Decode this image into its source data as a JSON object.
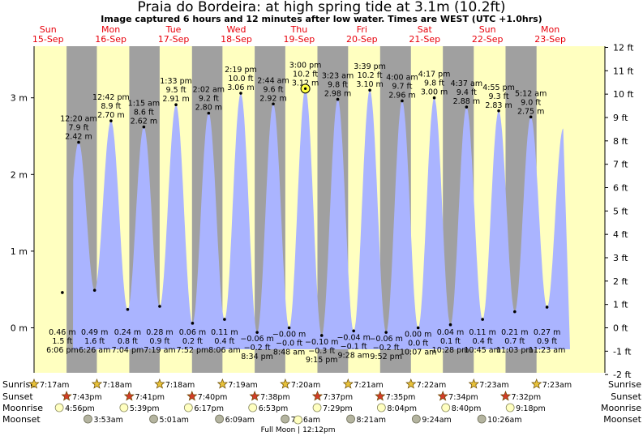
{
  "title": "Praia do Bordeira: at high  spring tide at 3.1m (10.2ft)",
  "subtitle": "Image captured 6 hours and 12 minutes after low water. Times are WEST (UTC +1.0hrs)",
  "colors": {
    "water": "#aab4ff",
    "day": "#ffffc0",
    "night": "#a0a0a0",
    "day_header": "#e8000b",
    "sun_star": "#e8c23a",
    "sunset_star": "#d23c28",
    "moon": "#ffffc0",
    "moonset": "#b4b4a0"
  },
  "days": [
    {
      "name": "Sun",
      "date": "15-Sep"
    },
    {
      "name": "Mon",
      "date": "16-Sep"
    },
    {
      "name": "Tue",
      "date": "17-Sep"
    },
    {
      "name": "Wed",
      "date": "18-Sep"
    },
    {
      "name": "Thu",
      "date": "19-Sep"
    },
    {
      "name": "Fri",
      "date": "20-Sep"
    },
    {
      "name": "Sat",
      "date": "21-Sep"
    },
    {
      "name": "Sun",
      "date": "22-Sep"
    },
    {
      "name": "Mon",
      "date": "23-Sep"
    }
  ],
  "chart_data": {
    "type": "area",
    "title": "Praia do Bordeira: at high  spring tide at 3.1m (10.2ft)",
    "left_axis": {
      "unit": "m",
      "ticks": [
        0,
        1,
        2,
        3
      ],
      "labels": [
        "0 m",
        "1 m",
        "2 m",
        "3 m"
      ],
      "range": [
        -0.58,
        3.7
      ]
    },
    "right_axis": {
      "unit": "ft",
      "ticks": [
        -2,
        -1,
        0,
        1,
        2,
        3,
        4,
        5,
        6,
        7,
        8,
        9,
        10,
        11,
        12
      ],
      "labels": [
        "−2 ft",
        "−1 ft",
        "0 ft",
        "1 ft",
        "2 ft",
        "3 ft",
        "4 ft",
        "5 ft",
        "6 ft",
        "7 ft",
        "8 ft",
        "9 ft",
        "10 ft",
        "11 ft",
        "12 ft"
      ]
    },
    "current": {
      "time": "3:00 pm",
      "height_m": 3.12,
      "height_ft": "10.2 ft"
    },
    "tides": [
      {
        "type": "low",
        "day": 0,
        "time": "6:06 pm",
        "height_m": 0.46,
        "m": "0.46 m",
        "ft": "1.5 ft"
      },
      {
        "type": "high",
        "day": 1,
        "time": "12:20 am",
        "height_m": 2.42,
        "m": "2.42 m",
        "ft": "7.9 ft"
      },
      {
        "type": "low",
        "day": 1,
        "time": "6:26 am",
        "height_m": 0.49,
        "m": "0.49 m",
        "ft": "1.6 ft"
      },
      {
        "type": "high",
        "day": 1,
        "time": "12:42 pm",
        "height_m": 2.7,
        "m": "2.70 m",
        "ft": "8.9 ft"
      },
      {
        "type": "low",
        "day": 1,
        "time": "7:04 pm",
        "height_m": 0.24,
        "m": "0.24 m",
        "ft": "0.8 ft"
      },
      {
        "type": "high",
        "day": 2,
        "time": "1:15 am",
        "height_m": 2.62,
        "m": "2.62 m",
        "ft": "8.6 ft"
      },
      {
        "type": "low",
        "day": 2,
        "time": "7:19 am",
        "height_m": 0.28,
        "m": "0.28 m",
        "ft": "0.9 ft"
      },
      {
        "type": "high",
        "day": 2,
        "time": "1:33 pm",
        "height_m": 2.91,
        "m": "2.91 m",
        "ft": "9.5 ft"
      },
      {
        "type": "low",
        "day": 2,
        "time": "7:52 pm",
        "height_m": 0.06,
        "m": "0.06 m",
        "ft": "0.2 ft"
      },
      {
        "type": "high",
        "day": 3,
        "time": "2:02 am",
        "height_m": 2.8,
        "m": "2.80 m",
        "ft": "9.2 ft"
      },
      {
        "type": "low",
        "day": 3,
        "time": "8:06 am",
        "height_m": 0.11,
        "m": "0.11 m",
        "ft": "0.4 ft"
      },
      {
        "type": "high",
        "day": 3,
        "time": "2:19 pm",
        "height_m": 3.06,
        "m": "3.06 m",
        "ft": "10.0 ft"
      },
      {
        "type": "low",
        "day": 3,
        "time": "8:34 pm",
        "height_m": -0.06,
        "m": "−0.06 m",
        "ft": "−0.2 ft"
      },
      {
        "type": "high",
        "day": 4,
        "time": "2:44 am",
        "height_m": 2.92,
        "m": "2.92 m",
        "ft": "9.6 ft"
      },
      {
        "type": "low",
        "day": 4,
        "time": "8:48 am",
        "height_m": -0.0,
        "m": "−0.00 m",
        "ft": "−0.0 ft"
      },
      {
        "type": "high",
        "day": 4,
        "time": "3:00 pm",
        "height_m": 3.12,
        "m": "3.12 m",
        "ft": "10.2 ft"
      },
      {
        "type": "low",
        "day": 4,
        "time": "9:15 pm",
        "height_m": -0.1,
        "m": "−0.10 m",
        "ft": "−0.3 ft"
      },
      {
        "type": "high",
        "day": 5,
        "time": "3:23 am",
        "height_m": 2.98,
        "m": "2.98 m",
        "ft": "9.8 ft"
      },
      {
        "type": "low",
        "day": 5,
        "time": "9:28 am",
        "height_m": -0.04,
        "m": "−0.04 m",
        "ft": "−0.1 ft"
      },
      {
        "type": "high",
        "day": 5,
        "time": "3:39 pm",
        "height_m": 3.1,
        "m": "3.10 m",
        "ft": "10.2 ft"
      },
      {
        "type": "low",
        "day": 5,
        "time": "9:52 pm",
        "height_m": -0.06,
        "m": "−0.06 m",
        "ft": "−0.2 ft"
      },
      {
        "type": "high",
        "day": 6,
        "time": "4:00 am",
        "height_m": 2.96,
        "m": "2.96 m",
        "ft": "9.7 ft"
      },
      {
        "type": "low",
        "day": 6,
        "time": "10:07 am",
        "height_m": 0.0,
        "m": "0.00 m",
        "ft": "0.0 ft"
      },
      {
        "type": "high",
        "day": 6,
        "time": "4:17 pm",
        "height_m": 3.0,
        "m": "3.00 m",
        "ft": "9.8 ft"
      },
      {
        "type": "low",
        "day": 6,
        "time": "10:28 pm",
        "height_m": 0.04,
        "m": "0.04 m",
        "ft": "0.1 ft"
      },
      {
        "type": "high",
        "day": 7,
        "time": "4:37 am",
        "height_m": 2.88,
        "m": "2.88 m",
        "ft": "9.4 ft"
      },
      {
        "type": "low",
        "day": 7,
        "time": "10:45 am",
        "height_m": 0.11,
        "m": "0.11 m",
        "ft": "0.4 ft"
      },
      {
        "type": "high",
        "day": 7,
        "time": "4:55 pm",
        "height_m": 2.83,
        "m": "2.83 m",
        "ft": "9.3 ft"
      },
      {
        "type": "low",
        "day": 7,
        "time": "11:03 pm",
        "height_m": 0.21,
        "m": "0.21 m",
        "ft": "0.7 ft"
      },
      {
        "type": "high",
        "day": 8,
        "time": "5:12 am",
        "height_m": 2.75,
        "m": "2.75 m",
        "ft": "9.0 ft"
      },
      {
        "type": "low",
        "day": 8,
        "time": "11:23 am",
        "height_m": 0.27,
        "m": "0.27 m",
        "ft": "0.9 ft"
      }
    ],
    "sunrise": [
      {
        "day": 0,
        "time": "7:17am"
      },
      {
        "day": 1,
        "time": "7:18am"
      },
      {
        "day": 2,
        "time": "7:18am"
      },
      {
        "day": 3,
        "time": "7:19am"
      },
      {
        "day": 4,
        "time": "7:20am"
      },
      {
        "day": 5,
        "time": "7:21am"
      },
      {
        "day": 6,
        "time": "7:22am"
      },
      {
        "day": 7,
        "time": "7:23am"
      },
      {
        "day": 8,
        "time": "7:23am"
      }
    ],
    "sunset": [
      {
        "day": 0,
        "time": "7:43pm"
      },
      {
        "day": 1,
        "time": "7:41pm"
      },
      {
        "day": 2,
        "time": "7:40pm"
      },
      {
        "day": 3,
        "time": "7:38pm"
      },
      {
        "day": 4,
        "time": "7:37pm"
      },
      {
        "day": 5,
        "time": "7:35pm"
      },
      {
        "day": 6,
        "time": "7:34pm"
      },
      {
        "day": 7,
        "time": "7:32pm"
      }
    ],
    "moonrise": [
      {
        "day": 0,
        "time": "4:56pm"
      },
      {
        "day": 1,
        "time": "5:39pm"
      },
      {
        "day": 2,
        "time": "6:17pm"
      },
      {
        "day": 3,
        "time": "6:53pm"
      },
      {
        "day": 4,
        "time": "7:29pm"
      },
      {
        "day": 5,
        "time": "8:04pm"
      },
      {
        "day": 6,
        "time": "8:40pm"
      },
      {
        "day": 7,
        "time": "9:18pm"
      }
    ],
    "moonset": [
      {
        "day": 1,
        "time": "3:53am"
      },
      {
        "day": 2,
        "time": "5:01am"
      },
      {
        "day": 3,
        "time": "6:09am"
      },
      {
        "day": 4,
        "time": "7:16am"
      },
      {
        "day": 5,
        "time": "8:21am"
      },
      {
        "day": 6,
        "time": "9:24am"
      },
      {
        "day": 7,
        "time": "10:26am"
      }
    ],
    "moon_phase": {
      "day": 4,
      "label": "Full Moon | 12:12pm"
    }
  },
  "rows": {
    "sunrise": "Sunrise",
    "sunset": "Sunset",
    "moonrise": "Moonrise",
    "moonset": "Moonset"
  }
}
